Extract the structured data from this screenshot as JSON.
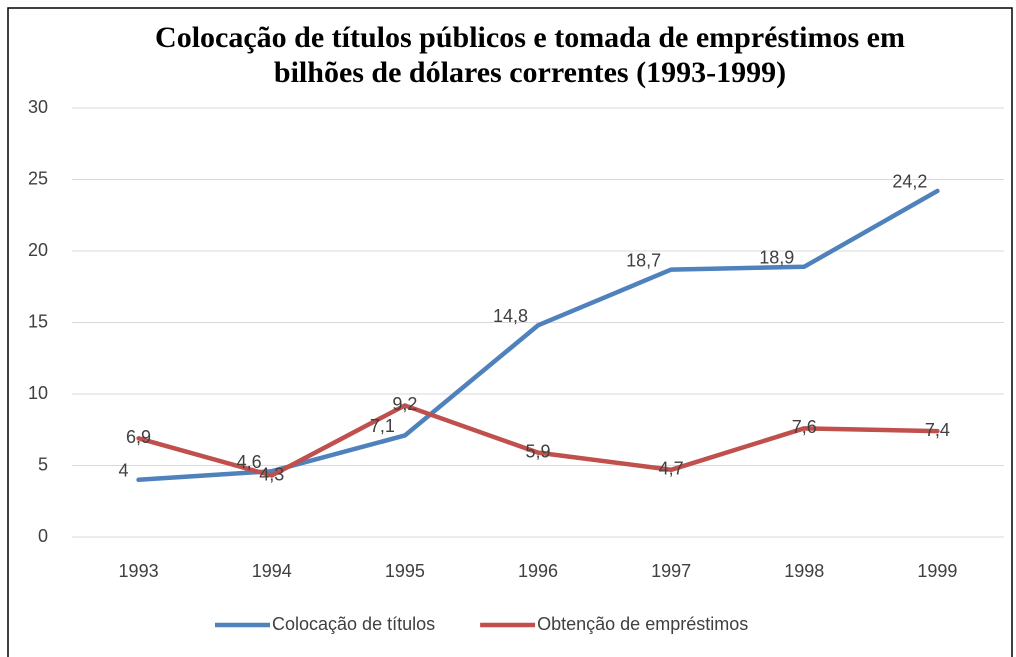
{
  "chart_data": {
    "type": "line",
    "title": [
      "Colocação de títulos públicos e tomada de empréstimos em",
      "bilhões de dólares correntes (1993-1999)"
    ],
    "categories": [
      "1993",
      "1994",
      "1995",
      "1996",
      "1997",
      "1998",
      "1999"
    ],
    "series": [
      {
        "name": "Colocação de títulos",
        "color": "#4f81bd",
        "values": [
          4,
          4.6,
          7.1,
          14.8,
          18.7,
          18.9,
          24.2
        ],
        "value_labels": [
          "4",
          "4,6",
          "7,1",
          "14,8",
          "18,7",
          "18,9",
          "24,2"
        ]
      },
      {
        "name": "Obtenção de empréstimos",
        "color": "#c0504d",
        "values": [
          6.9,
          4.3,
          9.2,
          5.9,
          4.7,
          7.6,
          7.4
        ],
        "value_labels": [
          "6,9",
          "4,3",
          "9,2",
          "5,9",
          "4,7",
          "7,6",
          "7,4"
        ]
      }
    ],
    "ylim": [
      0,
      30
    ],
    "yticks": [
      0,
      5,
      10,
      15,
      20,
      25,
      30
    ],
    "grid": true,
    "legend": "bottom"
  }
}
